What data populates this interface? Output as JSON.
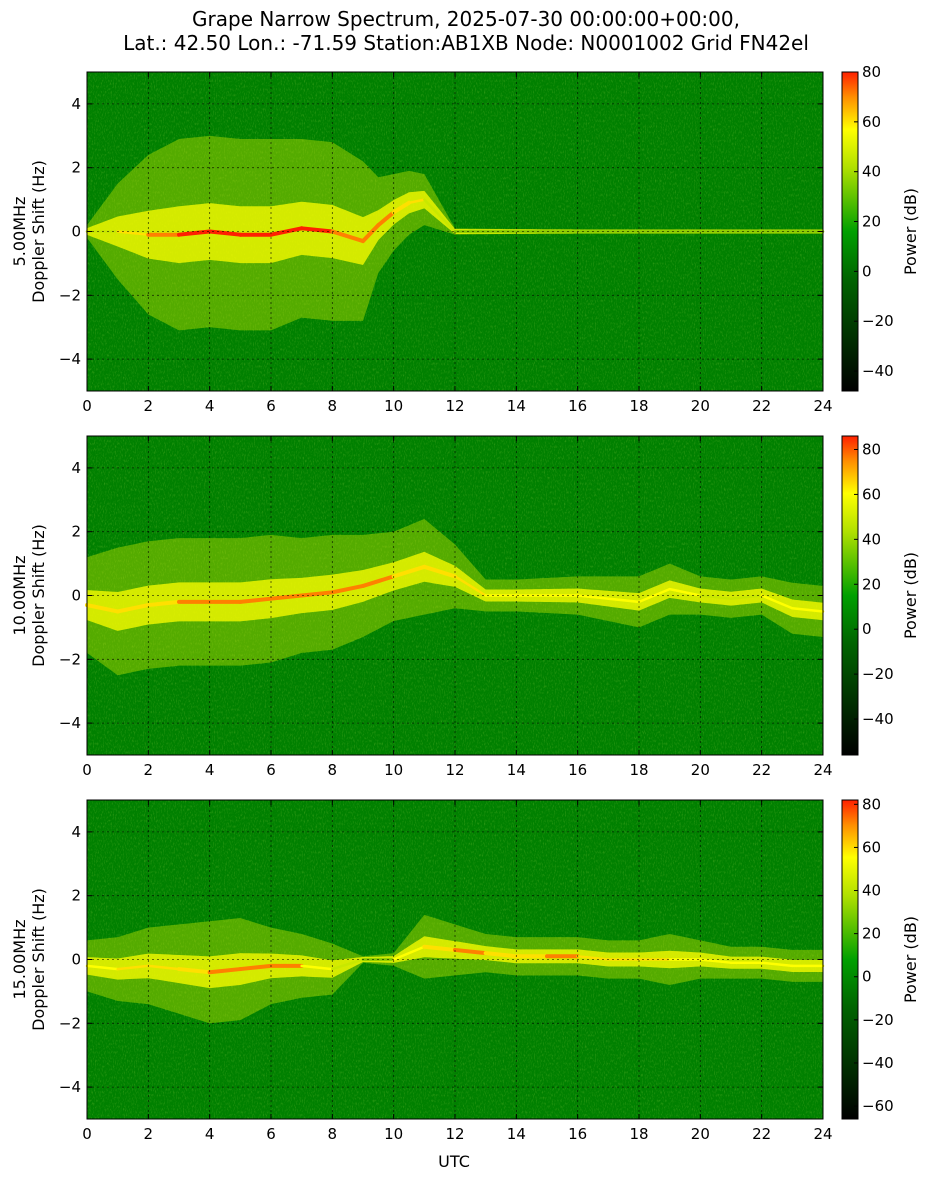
{
  "title_lines": [
    "Grape Narrow Spectrum, 2025-07-30 00:00:00+00:00,",
    "Lat.: 42.50 Lon.: -71.59 Station:AB1XB Node: N0001002 Grid FN42el"
  ],
  "xlabel": "UTC",
  "colorbar_label": "Power (dB)",
  "colors": {
    "background": "#008000",
    "trace_mid": "#ffff00",
    "trace_hot": "#ff2000"
  },
  "chart_data": [
    {
      "type": "heatmap",
      "panel_label": "5.00MHz",
      "ylabel": "Doppler Shift (Hz)",
      "xlim": [
        0,
        24
      ],
      "ylim": [
        -5,
        5
      ],
      "xticks": [
        0,
        2,
        4,
        6,
        8,
        10,
        12,
        14,
        16,
        18,
        20,
        22,
        24
      ],
      "yticks": [
        -4,
        -2,
        0,
        2,
        4
      ],
      "grid": true,
      "colorbar": {
        "range": [
          -48,
          80
        ],
        "ticks": [
          -40,
          -20,
          0,
          20,
          40,
          60,
          80
        ]
      },
      "trace": {
        "x": [
          0,
          1,
          2,
          3,
          4,
          5,
          6,
          7,
          8,
          9,
          9.5,
          10,
          10.5,
          11,
          12,
          16,
          20,
          24
        ],
        "y": [
          0,
          0,
          -0.1,
          -0.1,
          0,
          -0.1,
          -0.1,
          0.1,
          0,
          -0.3,
          0.2,
          0.6,
          0.9,
          1.0,
          0,
          0,
          0,
          0
        ],
        "power": [
          20,
          40,
          60,
          65,
          70,
          68,
          65,
          68,
          62,
          65,
          60,
          60,
          55,
          45,
          15,
          10,
          10,
          15
        ],
        "spread": [
          0.2,
          1.5,
          2.5,
          3.0,
          3.0,
          3.0,
          3.0,
          2.8,
          2.8,
          2.5,
          1.5,
          1.2,
          1.0,
          0.8,
          0.1,
          0.05,
          0.05,
          0.05
        ]
      }
    },
    {
      "type": "heatmap",
      "panel_label": "10.00MHz",
      "ylabel": "Doppler Shift (Hz)",
      "xlim": [
        0,
        24
      ],
      "ylim": [
        -5,
        5
      ],
      "xticks": [
        0,
        2,
        4,
        6,
        8,
        10,
        12,
        14,
        16,
        18,
        20,
        22,
        24
      ],
      "yticks": [
        -4,
        -2,
        0,
        2,
        4
      ],
      "grid": true,
      "colorbar": {
        "range": [
          -56,
          86
        ],
        "ticks": [
          -40,
          -20,
          0,
          20,
          40,
          60,
          80
        ]
      },
      "trace": {
        "x": [
          0,
          1,
          2,
          3,
          4,
          5,
          6,
          7,
          8,
          9,
          10,
          11,
          12,
          13,
          14,
          16,
          18,
          19,
          20,
          21,
          22,
          23,
          24
        ],
        "y": [
          -0.3,
          -0.5,
          -0.3,
          -0.2,
          -0.2,
          -0.2,
          -0.1,
          0,
          0.1,
          0.3,
          0.6,
          0.9,
          0.6,
          0,
          0,
          0,
          -0.2,
          0.2,
          0,
          -0.1,
          0,
          -0.4,
          -0.5
        ],
        "power": [
          55,
          60,
          55,
          58,
          65,
          62,
          62,
          60,
          58,
          62,
          60,
          55,
          60,
          45,
          40,
          42,
          35,
          38,
          35,
          35,
          30,
          45,
          45
        ],
        "spread": [
          1.5,
          2.0,
          2.0,
          2.0,
          2.0,
          2.0,
          2.0,
          1.8,
          1.8,
          1.6,
          1.4,
          1.5,
          1.0,
          0.5,
          0.5,
          0.6,
          0.8,
          0.8,
          0.6,
          0.6,
          0.6,
          0.8,
          0.8
        ]
      }
    },
    {
      "type": "heatmap",
      "panel_label": "15.00MHz",
      "ylabel": "Doppler Shift (Hz)",
      "xlim": [
        0,
        24
      ],
      "ylim": [
        -5,
        5
      ],
      "xticks": [
        0,
        2,
        4,
        6,
        8,
        10,
        12,
        14,
        16,
        18,
        20,
        22,
        24
      ],
      "yticks": [
        -4,
        -2,
        0,
        2,
        4
      ],
      "grid": true,
      "colorbar": {
        "range": [
          -66,
          82
        ],
        "ticks": [
          -60,
          -40,
          -20,
          0,
          20,
          40,
          60,
          80
        ]
      },
      "trace": {
        "x": [
          0,
          1,
          2,
          3,
          4,
          5,
          6,
          7,
          8,
          9,
          10,
          11,
          12,
          13,
          14,
          15,
          16,
          17,
          18,
          19,
          20,
          21,
          22,
          23,
          24
        ],
        "y": [
          -0.2,
          -0.3,
          -0.2,
          -0.3,
          -0.4,
          -0.3,
          -0.2,
          -0.2,
          -0.3,
          0,
          0,
          0.4,
          0.3,
          0.2,
          0.1,
          0.1,
          0.1,
          0,
          0,
          0,
          0,
          -0.1,
          -0.1,
          -0.2,
          -0.2
        ],
        "power": [
          40,
          50,
          55,
          55,
          58,
          60,
          62,
          55,
          40,
          15,
          20,
          55,
          60,
          58,
          55,
          60,
          58,
          52,
          50,
          50,
          45,
          42,
          40,
          40,
          38
        ],
        "spread": [
          0.8,
          1.0,
          1.2,
          1.4,
          1.6,
          1.6,
          1.2,
          1.0,
          0.8,
          0.1,
          0.2,
          1.0,
          0.8,
          0.6,
          0.6,
          0.6,
          0.6,
          0.6,
          0.6,
          0.8,
          0.6,
          0.5,
          0.5,
          0.5,
          0.5
        ]
      }
    }
  ]
}
